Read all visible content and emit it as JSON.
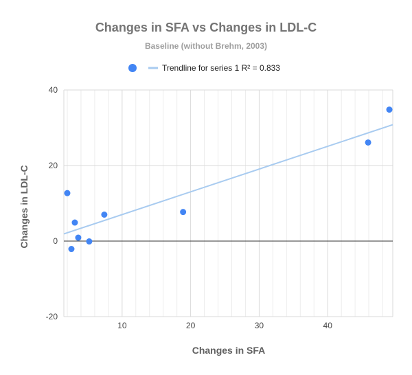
{
  "chart_data": {
    "type": "scatter",
    "title": "Changes in SFA vs Changes in LDL-C",
    "subtitle": "Baseline (without Brehm, 2003)",
    "xlabel": "Changes in SFA",
    "ylabel": "Changes in LDL-C",
    "xlim": [
      1.5,
      49.5
    ],
    "ylim": [
      -20,
      40
    ],
    "x_ticks": [
      10,
      20,
      30,
      40
    ],
    "y_ticks": [
      -20,
      0,
      20,
      40
    ],
    "x_minor_step": 2,
    "grid": true,
    "legend_position": "top",
    "series": [
      {
        "points": [
          {
            "x": 2.0,
            "y": 12.7
          },
          {
            "x": 2.6,
            "y": -2.1
          },
          {
            "x": 3.1,
            "y": 4.9
          },
          {
            "x": 3.6,
            "y": 0.9
          },
          {
            "x": 5.2,
            "y": -0.1
          },
          {
            "x": 7.4,
            "y": 7.0
          },
          {
            "x": 18.9,
            "y": 7.7
          },
          {
            "x": 45.9,
            "y": 26.1
          },
          {
            "x": 49.0,
            "y": 34.8
          }
        ],
        "color": "#4285f4"
      }
    ],
    "trendline": {
      "name": "Trendline for series 1 R² = 0.833",
      "color": "#a8cbf0",
      "x_range": [
        1.5,
        49.5
      ],
      "y_range": [
        1.9,
        30.8
      ]
    },
    "colors": {
      "grid": "#d9d9d9",
      "minor_grid": "#ececec",
      "zero_line": "#333333",
      "axis": "#333333"
    }
  }
}
